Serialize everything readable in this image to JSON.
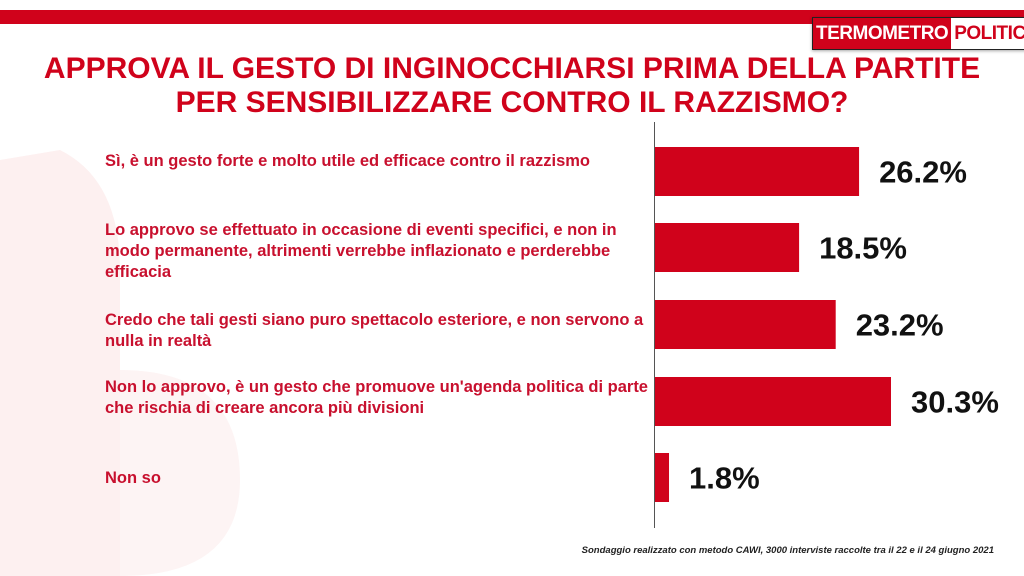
{
  "brand": {
    "part1": "TERMOMETRO",
    "part2": "POLITICO"
  },
  "colors": {
    "accent": "#d0021b",
    "bar": "#d0021b",
    "label_text": "#c8102e",
    "value_text": "#111111"
  },
  "title_lines": [
    "APPROVA IL GESTO DI INGINOCCHIARSI PRIMA DELLA PARTITE",
    "PER SENSIBILIZZARE CONTRO IL RAZZISMO?"
  ],
  "footnote": "Sondaggio realizzato con metodo CAWI, 3000 interviste raccolte tra il 22  e il 24 giugno 2021",
  "chart_data": {
    "type": "bar",
    "orientation": "horizontal",
    "title": "APPROVA IL GESTO DI INGINOCCHIARSI PRIMA DELLA PARTITE PER SENSIBILIZZARE CONTRO IL RAZZISMO?",
    "categories": [
      "Sì, è un gesto forte e molto utile ed efficace contro il razzismo",
      "Lo approvo se effettuato in occasione di eventi specifici, e non in modo permanente, altrimenti verrebbe inflazionato e perderebbe efficacia",
      "Credo che tali gesti siano puro spettacolo esteriore, e non servono a nulla in realtà",
      "Non lo approvo, è un gesto che promuove un'agenda politica di parte che rischia di creare ancora più divisioni",
      "Non so"
    ],
    "values": [
      26.2,
      18.5,
      23.2,
      30.3,
      1.8
    ],
    "value_labels": [
      "26.2%",
      "18.5%",
      "23.2%",
      "30.3%",
      "1.8%"
    ],
    "unit": "%",
    "xlim": [
      0,
      30.3
    ],
    "grid": false,
    "legend": "none"
  }
}
